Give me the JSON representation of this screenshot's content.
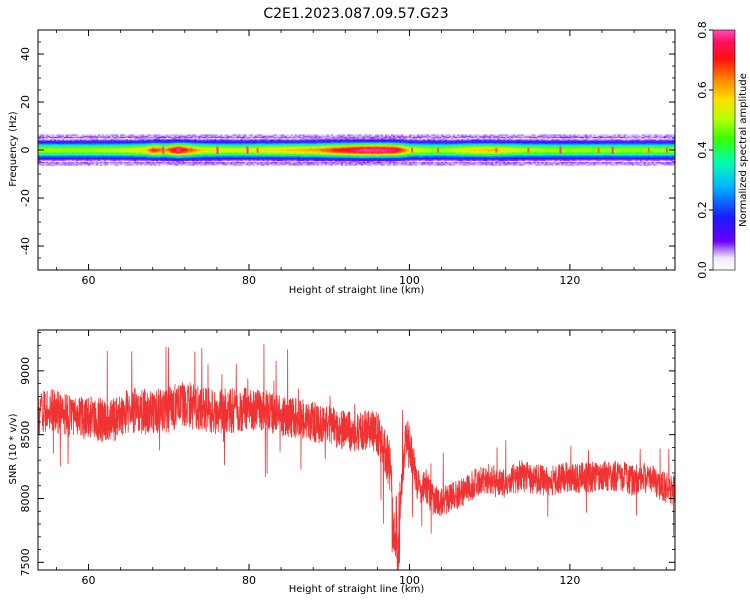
{
  "chart_data": [
    {
      "type": "heatmap",
      "title": "C2E1.2023.087.09.57.G23",
      "xlabel": "Height of straight line (km)",
      "ylabel": "Frequency (Hz)",
      "xlim": [
        53.7,
        133.1
      ],
      "ylim": [
        -50,
        50
      ],
      "x_ticks": [
        60,
        80,
        100,
        120
      ],
      "x_tick_labels": [
        "60",
        "80",
        "100",
        "120"
      ],
      "y_ticks": [
        -40,
        -20,
        0,
        20,
        40
      ],
      "y_tick_labels": [
        "-40",
        "-20",
        "0",
        "20",
        "40"
      ],
      "colorbar": {
        "label": "Normalized spectral amplitude",
        "range": [
          0,
          0.8
        ],
        "ticks": [
          0,
          0.2,
          0.4,
          0.6,
          0.8
        ],
        "tick_labels": [
          "0.0",
          "0.2",
          "0.4",
          "0.6",
          "0.8"
        ],
        "colormap": "rainbow"
      },
      "band": {
        "center_frequency_hz": 0,
        "half_width_hz": 6.5,
        "height_profile": {
          "x": [
            53.7,
            56,
            60,
            64,
            67,
            68,
            69.5,
            71,
            72.5,
            74,
            76,
            78,
            80,
            84,
            88,
            90,
            92,
            94,
            96,
            98,
            100,
            102,
            104,
            106,
            108,
            110,
            114,
            118,
            122,
            126,
            130,
            133.1
          ],
          "peak_amplitude": [
            0.52,
            0.5,
            0.5,
            0.52,
            0.58,
            0.7,
            0.62,
            0.8,
            0.66,
            0.58,
            0.56,
            0.54,
            0.55,
            0.58,
            0.62,
            0.68,
            0.74,
            0.8,
            0.8,
            0.78,
            0.56,
            0.52,
            0.5,
            0.54,
            0.58,
            0.6,
            0.52,
            0.5,
            0.5,
            0.5,
            0.5,
            0.5
          ]
        }
      },
      "grid": false
    },
    {
      "type": "line",
      "title": "",
      "xlabel": "Height of straight line (km)",
      "ylabel": "SNR (10 * v/v)",
      "xlim": [
        53.7,
        133.1
      ],
      "ylim": [
        7440,
        9320
      ],
      "x_ticks": [
        60,
        80,
        100,
        120
      ],
      "x_tick_labels": [
        "60",
        "80",
        "100",
        "120"
      ],
      "y_ticks": [
        7500,
        8000,
        8500,
        9000
      ],
      "y_tick_labels": [
        "7500",
        "8000",
        "8500",
        "9000"
      ],
      "series": [
        {
          "color": "#f03232",
          "x": [
            53.7,
            55,
            57.5,
            60,
            62.5,
            65,
            67.5,
            70,
            72,
            74,
            76,
            78,
            80,
            82,
            84,
            86,
            88,
            90,
            92,
            94,
            95,
            96,
            96.6,
            97.1,
            97.6,
            98.1,
            98.6,
            99.1,
            99.6,
            100,
            100.5,
            101,
            101.5,
            102,
            102.5,
            103,
            103.5,
            104,
            105,
            106,
            107,
            108,
            109,
            110,
            111,
            112,
            114,
            116,
            118,
            120,
            122,
            124,
            126,
            128,
            130,
            131,
            132,
            133.1
          ],
          "values": [
            8660,
            8700,
            8650,
            8630,
            8600,
            8690,
            8680,
            8700,
            8740,
            8700,
            8680,
            8690,
            8700,
            8690,
            8650,
            8630,
            8600,
            8570,
            8530,
            8520,
            8550,
            8510,
            8380,
            8320,
            8240,
            7760,
            7860,
            8180,
            8460,
            8400,
            8260,
            8110,
            8050,
            8120,
            8030,
            7990,
            7980,
            7970,
            8010,
            8030,
            8060,
            8110,
            8140,
            8160,
            8120,
            8130,
            8180,
            8150,
            8140,
            8170,
            8160,
            8170,
            8180,
            8140,
            8170,
            8120,
            8090,
            8060
          ],
          "noise_amplitude": [
            150,
            150,
            155,
            160,
            160,
            165,
            165,
            165,
            165,
            160,
            160,
            160,
            150,
            150,
            145,
            145,
            145,
            140,
            140,
            140,
            140,
            150,
            180,
            190,
            200,
            200,
            190,
            180,
            170,
            160,
            140,
            115,
            115,
            115,
            115,
            110,
            110,
            110,
            105,
            105,
            105,
            105,
            105,
            110,
            110,
            110,
            110,
            110,
            110,
            110,
            110,
            110,
            110,
            110,
            110,
            110,
            110,
            110
          ]
        }
      ],
      "grid": false
    }
  ]
}
